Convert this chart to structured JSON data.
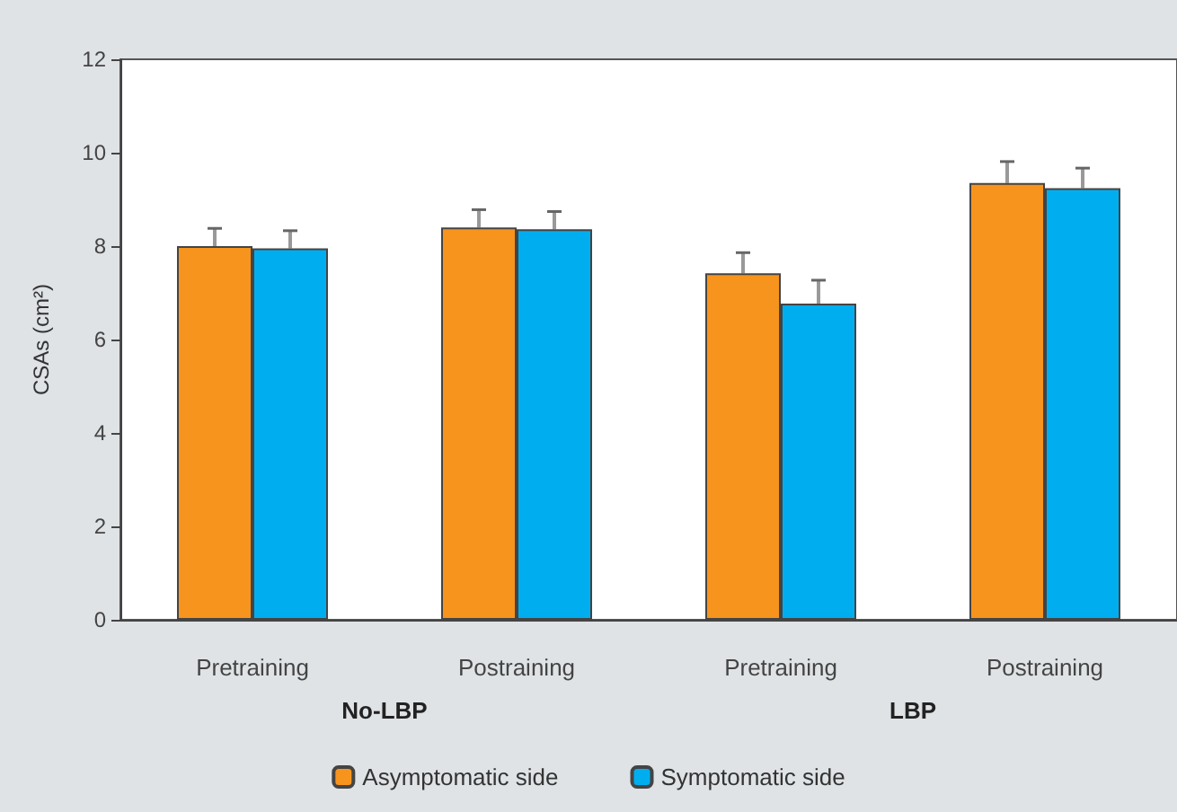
{
  "chart_data": {
    "type": "bar",
    "ylabel": "CSAs (cm²)",
    "categories": [
      "Pretraining",
      "Postraining",
      "Pretraining",
      "Postraining"
    ],
    "series": [
      {
        "name": "Asymptomatic side",
        "color": "#f7941d",
        "values": [
          8.0,
          8.4,
          7.42,
          9.35
        ],
        "errors": [
          [
            8.0,
            8.38
          ],
          [
            8.4,
            8.78
          ],
          [
            7.42,
            7.86
          ],
          [
            9.35,
            9.81
          ]
        ]
      },
      {
        "name": "Symptomatic side",
        "color": "#00aeef",
        "values": [
          7.95,
          8.36,
          6.77,
          9.24
        ],
        "errors": [
          [
            7.95,
            8.33
          ],
          [
            8.36,
            8.74
          ],
          [
            6.77,
            7.27
          ],
          [
            9.24,
            9.67
          ]
        ]
      }
    ],
    "annotations": [
      "No-LBP",
      "LBP"
    ],
    "ylim": [
      0,
      12
    ],
    "yticks": [
      0,
      2,
      4,
      6,
      8,
      10,
      12
    ],
    "grid": false,
    "legend": "bottom"
  }
}
